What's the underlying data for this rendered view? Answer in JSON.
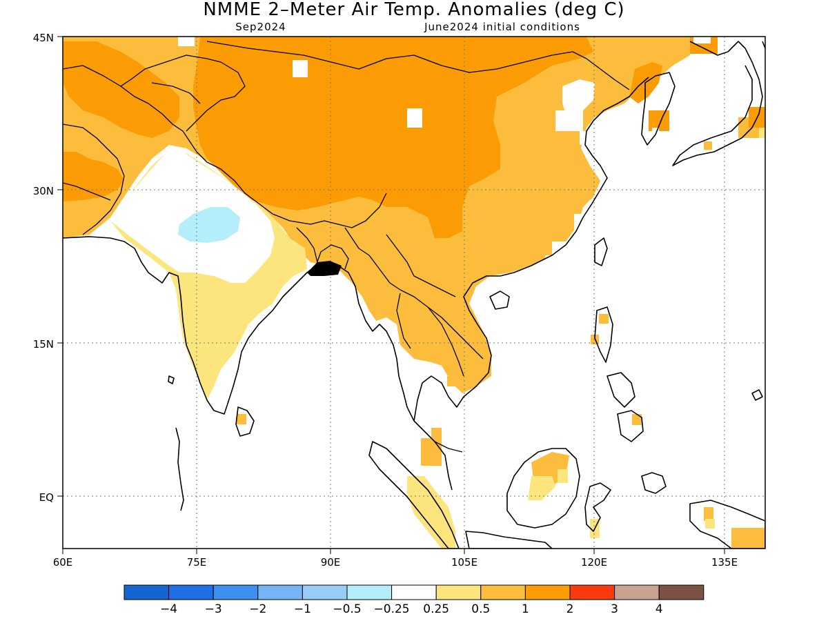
{
  "title": "NMME 2–Meter Air Temp. Anomalies (deg C)",
  "subtitle_left": "Sep2024",
  "subtitle_right": "June2024 initial conditions",
  "lon_ticks": [
    "60E",
    "75E",
    "90E",
    "105E",
    "120E",
    "135E"
  ],
  "lat_ticks": [
    "45N",
    "30N",
    "15N",
    "EQ"
  ],
  "colorbar": {
    "colors": [
      "#1565d0",
      "#1f6fe6",
      "#3d8ff0",
      "#76b5f4",
      "#97ccf7",
      "#b3eefa",
      "#ffffff",
      "#fde57e",
      "#fbbd3b",
      "#fb9c05",
      "#f83a0c",
      "#c9a392",
      "#7b5143"
    ],
    "labels": [
      "−4",
      "−3",
      "−2",
      "−1",
      "−0.5",
      "−0.25",
      "0.25",
      "0.5",
      "1",
      "2",
      "3",
      "4"
    ]
  },
  "colors": {
    "anom_0_25_0_5": "#fde57e",
    "anom_0_5_1": "#fbbd3b",
    "anom_1_2": "#fb9c05",
    "anom_neg_0_25_neg_0_5": "#b3eefa",
    "land_outline": "#000000"
  }
}
